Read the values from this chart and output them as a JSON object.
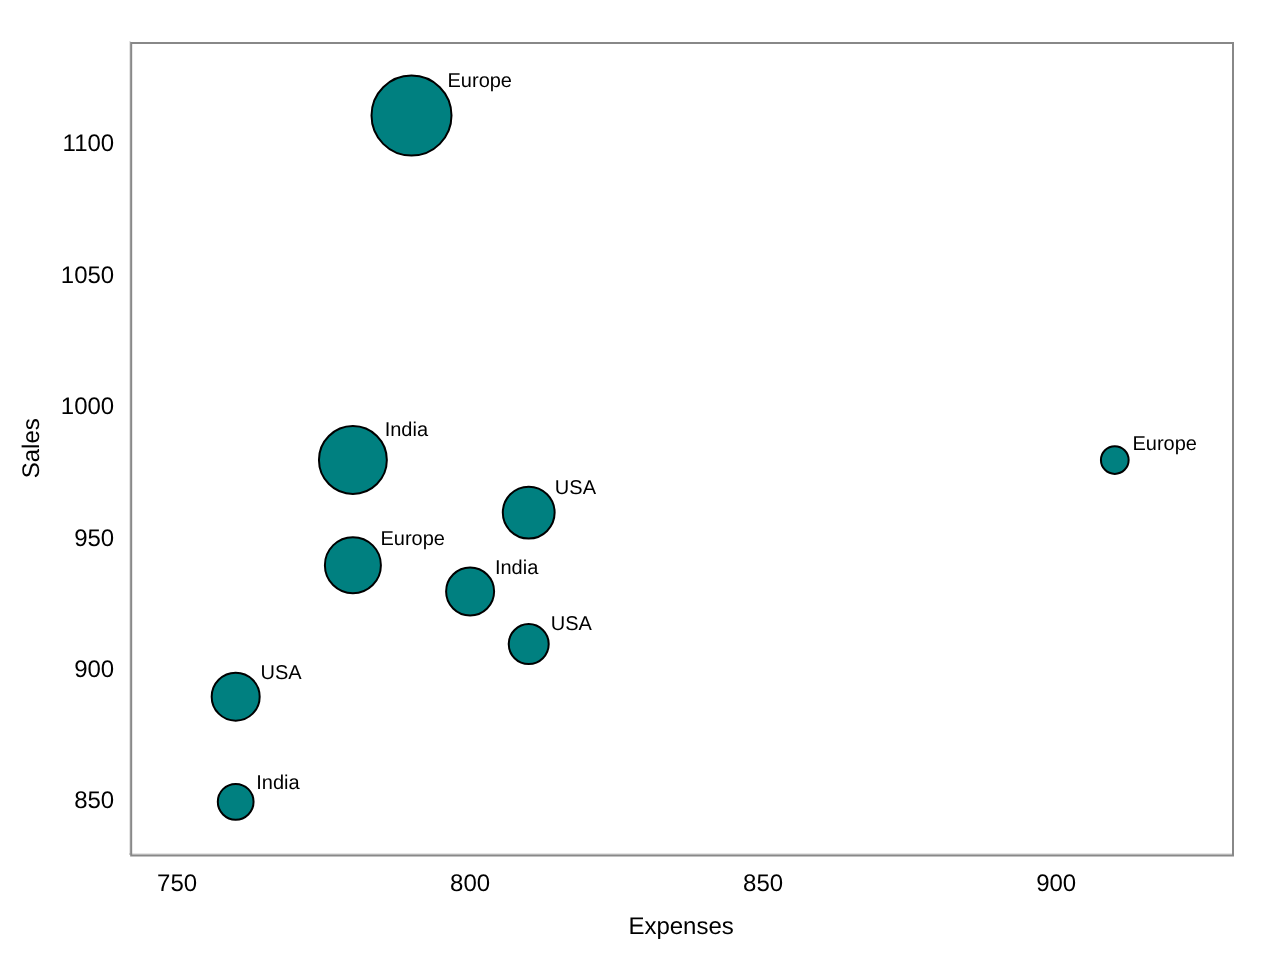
{
  "chart_data": {
    "type": "bubble",
    "xlabel": "Expenses",
    "ylabel": "Sales",
    "x": [
      790,
      910,
      780,
      810,
      780,
      800,
      810,
      760,
      760
    ],
    "values": [
      1111,
      980,
      980,
      960,
      940,
      930,
      910,
      890,
      850
    ],
    "sizes": [
      1,
      0.12,
      0.72,
      0.42,
      0.49,
      0.36,
      0.25,
      0.36,
      0.2
    ],
    "color": "#008080",
    "xlim": [
      742,
      930
    ],
    "xticks": [
      750,
      800,
      850,
      900
    ],
    "ylim": [
      830,
      1139
    ],
    "yticks": [
      850,
      900,
      950,
      1000,
      1050,
      1100
    ],
    "grid": false,
    "legend": false,
    "annotations": [
      {
        "text": "Europe",
        "x": 790,
        "y": 1111
      },
      {
        "text": "Europe",
        "x": 910,
        "y": 980
      },
      {
        "text": "India",
        "x": 780,
        "y": 980
      },
      {
        "text": "USA",
        "x": 810,
        "y": 960
      },
      {
        "text": "Europe",
        "x": 780,
        "y": 940
      },
      {
        "text": "India",
        "x": 800,
        "y": 930
      },
      {
        "text": "USA",
        "x": 810,
        "y": 910
      },
      {
        "text": "USA",
        "x": 760,
        "y": 890
      },
      {
        "text": "India",
        "x": 760,
        "y": 850
      }
    ]
  }
}
